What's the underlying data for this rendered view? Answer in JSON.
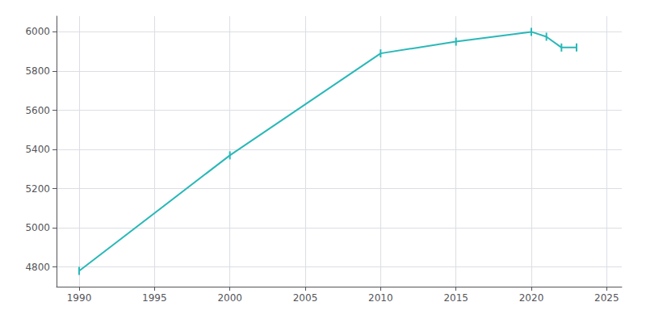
{
  "chart_data": {
    "type": "line",
    "x": [
      1990,
      2000,
      2010,
      2015,
      2020,
      2021,
      2022,
      2023
    ],
    "values": [
      4780,
      5370,
      5890,
      5950,
      6000,
      5975,
      5920,
      5920
    ],
    "color": "#2ab8b8",
    "marker": "line",
    "xlim": [
      1988.5,
      2026
    ],
    "ylim": [
      4700,
      6080
    ],
    "xticks": [
      1990,
      1995,
      2000,
      2005,
      2010,
      2015,
      2020,
      2025
    ],
    "yticks": [
      4800,
      5000,
      5200,
      5400,
      5600,
      5800,
      6000
    ],
    "grid": true
  }
}
